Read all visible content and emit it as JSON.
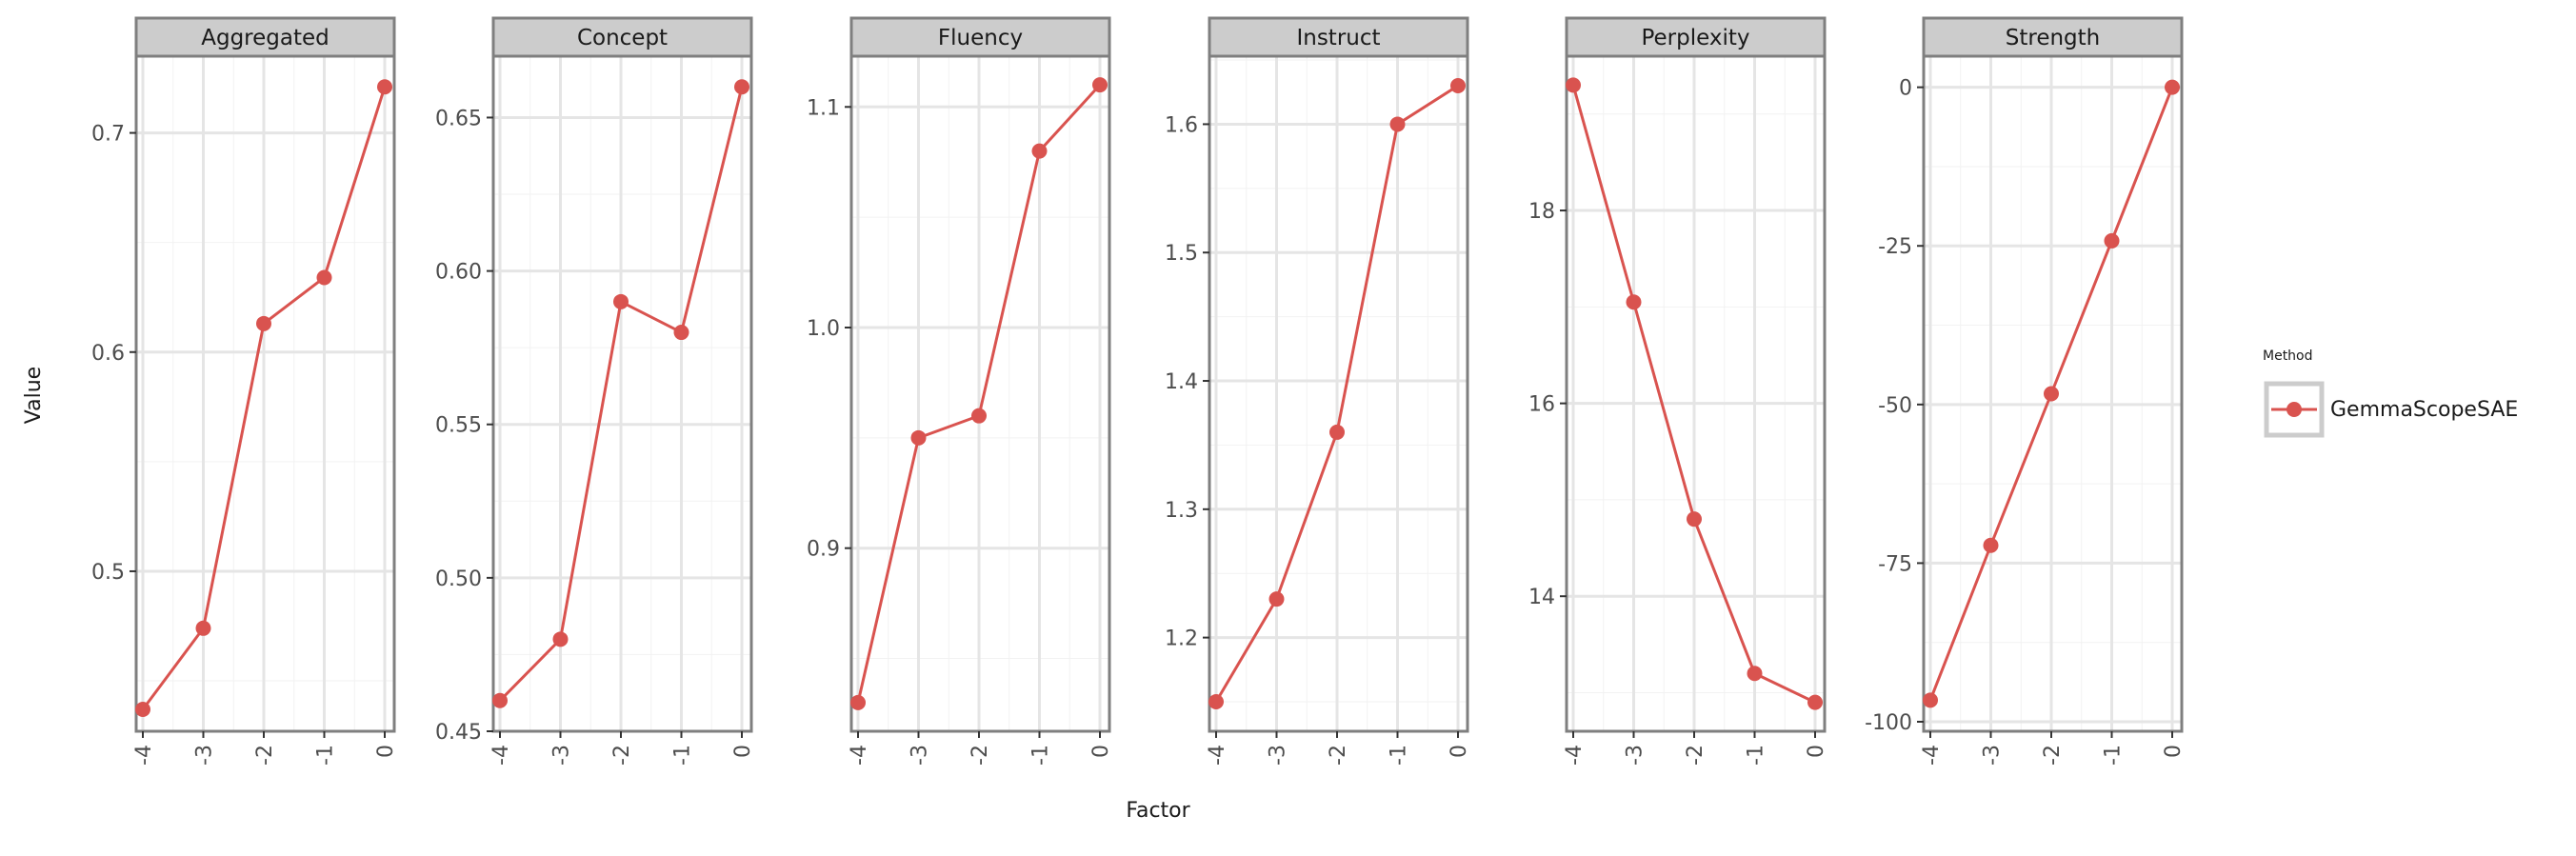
{
  "figure": {
    "xlabel": "Factor",
    "ylabel": "Value"
  },
  "legend": {
    "title": "Method",
    "entries": [
      {
        "label": "GemmaScopeSAE",
        "color": "#d9534f"
      }
    ]
  },
  "colors": {
    "series": "#d9534f",
    "strip_bg": "#cccccc",
    "border": "#7f7f7f",
    "grid_major": "#e5e5e5",
    "grid_minor": "#f2f2f2"
  },
  "chart_data": [
    {
      "type": "line",
      "panel": "Aggregated",
      "x": [
        -4,
        -3,
        -2,
        -1,
        0
      ],
      "x_tick_labels": [
        "-4",
        "-3",
        "-2",
        "-1",
        "0"
      ],
      "series": [
        {
          "name": "GemmaScopeSAE",
          "values": [
            0.437,
            0.474,
            0.613,
            0.634,
            0.721
          ]
        }
      ],
      "ylim": [
        0.427,
        0.735
      ],
      "y_ticks": [
        0.5,
        0.6,
        0.7
      ],
      "y_tick_labels": [
        "0.5",
        "0.6",
        "0.7"
      ],
      "grid": true
    },
    {
      "type": "line",
      "panel": "Concept",
      "x": [
        -4,
        -3,
        -2,
        -1,
        0
      ],
      "x_tick_labels": [
        "-4",
        "-3",
        "-2",
        "-1",
        "0"
      ],
      "series": [
        {
          "name": "GemmaScopeSAE",
          "values": [
            0.46,
            0.48,
            0.59,
            0.58,
            0.66
          ]
        }
      ],
      "ylim": [
        0.45,
        0.67
      ],
      "y_ticks": [
        0.45,
        0.5,
        0.55,
        0.6,
        0.65
      ],
      "y_tick_labels": [
        "0.45",
        "0.50",
        "0.55",
        "0.60",
        "0.65"
      ],
      "grid": true
    },
    {
      "type": "line",
      "panel": "Fluency",
      "x": [
        -4,
        -3,
        -2,
        -1,
        0
      ],
      "x_tick_labels": [
        "-4",
        "-3",
        "-2",
        "-1",
        "0"
      ],
      "series": [
        {
          "name": "GemmaScopeSAE",
          "values": [
            0.83,
            0.95,
            0.96,
            1.08,
            1.11
          ]
        }
      ],
      "ylim": [
        0.817,
        1.123
      ],
      "y_ticks": [
        0.9,
        1.0,
        1.1
      ],
      "y_tick_labels": [
        "0.9",
        "1.0",
        "1.1"
      ],
      "grid": true
    },
    {
      "type": "line",
      "panel": "Instruct",
      "x": [
        -4,
        -3,
        -2,
        -1,
        0
      ],
      "x_tick_labels": [
        "-4",
        "-3",
        "-2",
        "-1",
        "0"
      ],
      "series": [
        {
          "name": "GemmaScopeSAE",
          "values": [
            1.15,
            1.23,
            1.36,
            1.6,
            1.63
          ]
        }
      ],
      "ylim": [
        1.127,
        1.653
      ],
      "y_ticks": [
        1.2,
        1.3,
        1.4,
        1.5,
        1.6
      ],
      "y_tick_labels": [
        "1.2",
        "1.3",
        "1.4",
        "1.5",
        "1.6"
      ],
      "grid": true
    },
    {
      "type": "line",
      "panel": "Perplexity",
      "x": [
        -4,
        -3,
        -2,
        -1,
        0
      ],
      "x_tick_labels": [
        "-4",
        "-3",
        "-2",
        "-1",
        "0"
      ],
      "series": [
        {
          "name": "GemmaScopeSAE",
          "values": [
            19.3,
            17.05,
            14.8,
            13.2,
            12.9
          ]
        }
      ],
      "ylim": [
        12.6,
        19.6
      ],
      "y_ticks": [
        14,
        16,
        18
      ],
      "y_tick_labels": [
        "14",
        "16",
        "18"
      ],
      "grid": true
    },
    {
      "type": "line",
      "panel": "Strength",
      "x": [
        -4,
        -3,
        -2,
        -1,
        0
      ],
      "x_tick_labels": [
        "-4",
        "-3",
        "-2",
        "-1",
        "0"
      ],
      "series": [
        {
          "name": "GemmaScopeSAE",
          "values": [
            -96.6,
            -72.2,
            -48.3,
            -24.2,
            0.0
          ]
        }
      ],
      "ylim": [
        -101.5,
        4.9
      ],
      "y_ticks": [
        -100,
        -75,
        -50,
        -25,
        0
      ],
      "y_tick_labels": [
        "-100",
        "-75",
        "-50",
        "-25",
        "0"
      ],
      "grid": true
    }
  ]
}
